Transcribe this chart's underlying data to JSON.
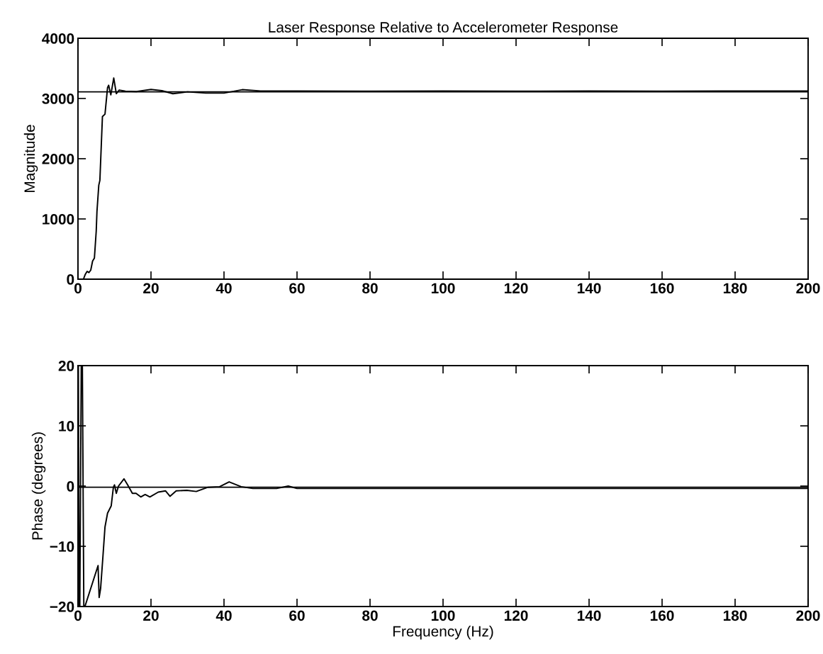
{
  "chart_data": [
    {
      "type": "line",
      "title": "Laser Response Relative to Accelerometer Response",
      "ylabel": "Magnitude",
      "series": [
        {
          "color": "#000000",
          "x": [
            1.5,
            2.0,
            2.5,
            3.0,
            3.5,
            4.0,
            4.5,
            5.0,
            5.2,
            5.7,
            6.0,
            6.7,
            7.4,
            8.1,
            8.4,
            9.0,
            9.8,
            10.5,
            11.3,
            13,
            16,
            20,
            23,
            26,
            30,
            35,
            40,
            45,
            50,
            60,
            80,
            100,
            120,
            140,
            160,
            180,
            200
          ],
          "values": [
            0,
            80,
            130,
            110,
            150,
            300,
            350,
            800,
            1124,
            1560,
            1640,
            2700,
            2740,
            3180,
            3220,
            3060,
            3340,
            3080,
            3140,
            3120,
            3115,
            3150,
            3130,
            3080,
            3110,
            3090,
            3090,
            3146,
            3125,
            3125,
            3120,
            3125,
            3120,
            3125,
            3120,
            3125,
            3125
          ]
        }
      ],
      "xlim": [
        0,
        200
      ],
      "xticks": [
        0,
        20,
        40,
        60,
        80,
        100,
        120,
        140,
        160,
        180,
        200
      ],
      "ylim": [
        0,
        4000
      ],
      "yticks": [
        0,
        1000,
        2000,
        3000,
        4000
      ],
      "ref_lines": [
        {
          "axis": "y",
          "value": 3110,
          "color": "#000000"
        }
      ]
    },
    {
      "type": "line",
      "xlabel": "Frequency (Hz)",
      "ylabel": "Phase (degrees)",
      "series": [
        {
          "color": "#000000",
          "x": [
            0.1,
            0.3,
            0.5,
            0.9,
            1.2,
            1.6,
            1.9,
            5.5,
            5.8,
            6.2,
            6.8,
            7.4,
            8.1,
            9.1,
            9.7,
            10.0,
            10.5,
            11.1,
            12.6,
            13.6,
            14.9,
            15.9,
            17.2,
            18.4,
            19.7,
            22,
            24,
            25.2,
            26.9,
            29.8,
            32.4,
            35.6,
            38.8,
            41.4,
            44.7,
            47.9,
            54.4,
            57.6,
            60,
            80,
            100,
            120,
            140,
            160,
            180,
            200
          ],
          "values": [
            20,
            -20,
            -20,
            20,
            20,
            -20,
            -20,
            -13.2,
            -18.5,
            -17,
            -12,
            -6.8,
            -4.5,
            -3.3,
            -0.2,
            0.2,
            -1.2,
            0,
            1.2,
            0.2,
            -1.2,
            -1.2,
            -1.8,
            -1.4,
            -1.8,
            -1,
            -0.8,
            -1.7,
            -0.8,
            -0.7,
            -0.9,
            -0.2,
            -0.1,
            0.7,
            -0.1,
            -0.4,
            -0.4,
            0,
            -0.4,
            -0.4,
            -0.4,
            -0.4,
            -0.4,
            -0.4,
            -0.4,
            -0.4
          ]
        }
      ],
      "xlim": [
        0,
        200
      ],
      "xticks": [
        0,
        20,
        40,
        60,
        80,
        100,
        120,
        140,
        160,
        180,
        200
      ],
      "ylim": [
        -20,
        20
      ],
      "yticks": [
        {
          "value": -20,
          "label": "−20"
        },
        {
          "value": -10,
          "label": "−10"
        },
        0,
        10,
        20
      ],
      "ref_lines": [
        {
          "axis": "y",
          "value": -0.2,
          "color": "#000000"
        }
      ]
    }
  ]
}
